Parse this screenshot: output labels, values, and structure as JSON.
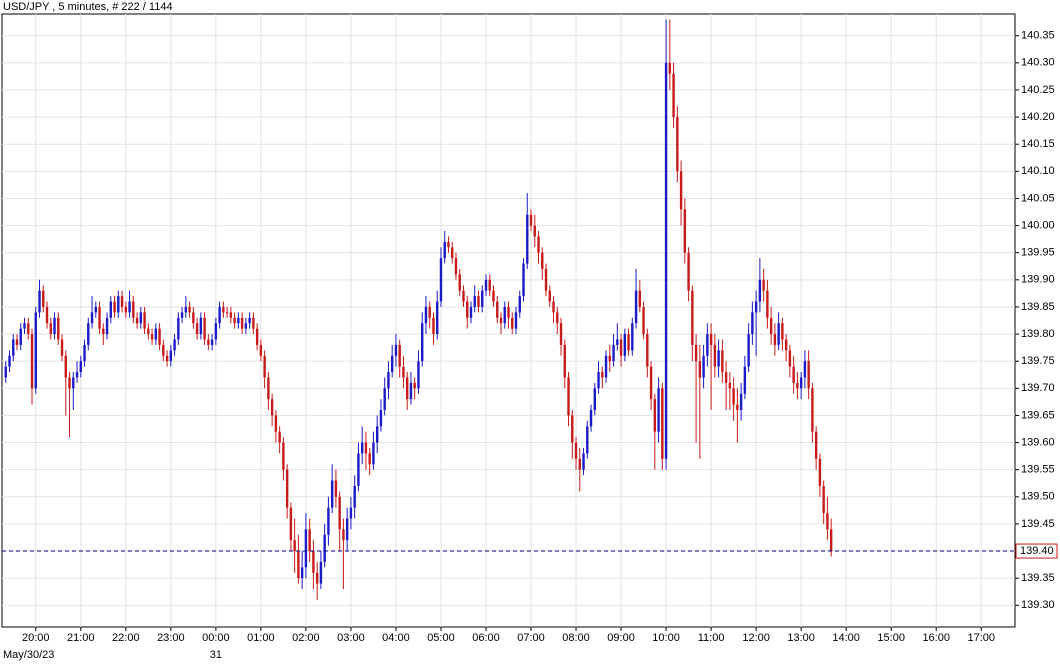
{
  "chart_data": {
    "type": "candlestick",
    "title": "USD/JPY , 5 minutes, # 222 / 1144",
    "date_labels": [
      "May/30/23",
      "31"
    ],
    "up_color": "#1a1ac8",
    "down_color": "#c81a1a",
    "grid": true,
    "xlim": [
      "19:15",
      "17:45"
    ],
    "xticks": [
      "20:00",
      "21:00",
      "22:00",
      "23:00",
      "00:00",
      "01:00",
      "02:00",
      "03:00",
      "04:00",
      "05:00",
      "06:00",
      "07:00",
      "08:00",
      "09:00",
      "10:00",
      "11:00",
      "12:00",
      "13:00",
      "14:00",
      "15:00",
      "16:00",
      "17:00"
    ],
    "ylim": [
      139.26,
      140.39
    ],
    "yticks": [
      {
        "value": 139.3,
        "label": "139.30"
      },
      {
        "value": 139.35,
        "label": "139.35"
      },
      {
        "value": 139.4,
        "label": "139.40"
      },
      {
        "value": 139.45,
        "label": "139.45"
      },
      {
        "value": 139.5,
        "label": "139.50"
      },
      {
        "value": 139.55,
        "label": "139.55"
      },
      {
        "value": 139.6,
        "label": "139.60"
      },
      {
        "value": 139.65,
        "label": "139.65"
      },
      {
        "value": 139.7,
        "label": "139.70"
      },
      {
        "value": 139.75,
        "label": "139.75"
      },
      {
        "value": 139.8,
        "label": "139.80"
      },
      {
        "value": 139.85,
        "label": "139.85"
      },
      {
        "value": 139.9,
        "label": "139.90"
      },
      {
        "value": 139.95,
        "label": "139.95"
      },
      {
        "value": 140.0,
        "label": "140.00"
      },
      {
        "value": 140.05,
        "label": "140.05"
      },
      {
        "value": 140.1,
        "label": "140.10"
      },
      {
        "value": 140.15,
        "label": "140.15"
      },
      {
        "value": 140.2,
        "label": "140.20"
      },
      {
        "value": 140.25,
        "label": "140.25"
      },
      {
        "value": 140.3,
        "label": "140.30"
      },
      {
        "value": 140.35,
        "label": "140.35"
      }
    ],
    "last": {
      "value": 139.4,
      "label": "139.40",
      "color": "#000080"
    },
    "x": [
      "19:20",
      "19:25",
      "19:30",
      "19:35",
      "19:40",
      "19:45",
      "19:50",
      "19:55",
      "20:00",
      "20:05",
      "20:10",
      "20:15",
      "20:20",
      "20:25",
      "20:30",
      "20:35",
      "20:40",
      "20:45",
      "20:50",
      "20:55",
      "21:00",
      "21:05",
      "21:10",
      "21:15",
      "21:20",
      "21:25",
      "21:30",
      "21:35",
      "21:40",
      "21:45",
      "21:50",
      "21:55",
      "22:00",
      "22:05",
      "22:10",
      "22:15",
      "22:20",
      "22:25",
      "22:30",
      "22:35",
      "22:40",
      "22:45",
      "22:50",
      "22:55",
      "23:00",
      "23:05",
      "23:10",
      "23:15",
      "23:20",
      "23:25",
      "23:30",
      "23:35",
      "23:40",
      "23:45",
      "23:50",
      "23:55",
      "00:00",
      "00:05",
      "00:10",
      "00:15",
      "00:20",
      "00:25",
      "00:30",
      "00:35",
      "00:40",
      "00:45",
      "00:50",
      "00:55",
      "01:00",
      "01:05",
      "01:10",
      "01:15",
      "01:20",
      "01:25",
      "01:30",
      "01:35",
      "01:40",
      "01:45",
      "01:50",
      "01:55",
      "02:00",
      "02:05",
      "02:10",
      "02:15",
      "02:20",
      "02:25",
      "02:30",
      "02:35",
      "02:40",
      "02:45",
      "02:50",
      "02:55",
      "03:00",
      "03:05",
      "03:10",
      "03:15",
      "03:20",
      "03:25",
      "03:30",
      "03:35",
      "03:40",
      "03:45",
      "03:50",
      "03:55",
      "04:00",
      "04:05",
      "04:10",
      "04:15",
      "04:20",
      "04:25",
      "04:30",
      "04:35",
      "04:40",
      "04:45",
      "04:50",
      "04:55",
      "05:00",
      "05:05",
      "05:10",
      "05:15",
      "05:20",
      "05:25",
      "05:30",
      "05:35",
      "05:40",
      "05:45",
      "05:50",
      "05:55",
      "06:00",
      "06:05",
      "06:10",
      "06:15",
      "06:20",
      "06:25",
      "06:30",
      "06:35",
      "06:40",
      "06:45",
      "06:50",
      "06:55",
      "07:00",
      "07:05",
      "07:10",
      "07:15",
      "07:20",
      "07:25",
      "07:30",
      "07:35",
      "07:40",
      "07:45",
      "07:50",
      "07:55",
      "08:00",
      "08:05",
      "08:10",
      "08:15",
      "08:20",
      "08:25",
      "08:30",
      "08:35",
      "08:40",
      "08:45",
      "08:50",
      "08:55",
      "09:00",
      "09:05",
      "09:10",
      "09:15",
      "09:20",
      "09:25",
      "09:30",
      "09:35",
      "09:40",
      "09:45",
      "09:50",
      "09:55",
      "10:00",
      "10:05",
      "10:10",
      "10:15",
      "10:20",
      "10:25",
      "10:30",
      "10:35",
      "10:40",
      "10:45",
      "10:50",
      "10:55",
      "11:00",
      "11:05",
      "11:10",
      "11:15",
      "11:20",
      "11:25",
      "11:30",
      "11:35",
      "11:40",
      "11:45",
      "11:50",
      "11:55",
      "12:00",
      "12:05",
      "12:10",
      "12:15",
      "12:20",
      "12:25",
      "12:30",
      "12:35",
      "12:40",
      "12:45",
      "12:50",
      "12:55",
      "13:00",
      "13:05",
      "13:10",
      "13:15",
      "13:20",
      "13:25",
      "13:30",
      "13:35",
      "13:40"
    ],
    "open": [
      139.72,
      139.74,
      139.76,
      139.79,
      139.78,
      139.81,
      139.82,
      139.8,
      139.7,
      139.84,
      139.88,
      139.85,
      139.82,
      139.8,
      139.83,
      139.79,
      139.76,
      139.72,
      139.7,
      139.72,
      139.73,
      139.75,
      139.78,
      139.82,
      139.84,
      139.85,
      139.81,
      139.8,
      139.83,
      139.86,
      139.84,
      139.87,
      139.85,
      139.84,
      139.86,
      139.83,
      139.82,
      139.84,
      139.81,
      139.8,
      139.79,
      139.81,
      139.78,
      139.76,
      139.75,
      139.77,
      139.79,
      139.83,
      139.84,
      139.85,
      139.84,
      139.82,
      139.8,
      139.83,
      139.79,
      139.78,
      139.79,
      139.82,
      139.85,
      139.84,
      139.84,
      139.83,
      139.82,
      139.83,
      139.81,
      139.82,
      139.83,
      139.81,
      139.78,
      139.76,
      139.72,
      139.68,
      139.65,
      139.62,
      139.6,
      139.55,
      139.48,
      139.42,
      139.4,
      139.35,
      139.37,
      139.44,
      139.4,
      139.36,
      139.34,
      139.38,
      139.43,
      139.48,
      139.53,
      139.5,
      139.44,
      139.42,
      139.46,
      139.48,
      139.52,
      139.58,
      139.6,
      139.58,
      139.56,
      139.6,
      139.63,
      139.66,
      139.7,
      139.73,
      139.76,
      139.78,
      139.74,
      139.72,
      139.68,
      139.71,
      139.7,
      139.75,
      139.82,
      139.85,
      139.83,
      139.8,
      139.86,
      139.94,
      139.97,
      139.96,
      139.94,
      139.91,
      139.88,
      139.86,
      139.83,
      139.85,
      139.87,
      139.85,
      139.88,
      139.9,
      139.88,
      139.86,
      139.83,
      139.82,
      139.85,
      139.83,
      139.81,
      139.84,
      139.87,
      139.93,
      140.02,
      140.0,
      139.98,
      139.95,
      139.92,
      139.88,
      139.86,
      139.84,
      139.82,
      139.78,
      139.72,
      139.65,
      139.6,
      139.57,
      139.55,
      139.58,
      139.63,
      139.66,
      139.7,
      139.73,
      139.72,
      139.76,
      139.75,
      139.78,
      139.79,
      139.76,
      139.8,
      139.77,
      139.82,
      139.88,
      139.85,
      139.8,
      139.74,
      139.68,
      139.62,
      139.7,
      139.57,
      140.3,
      140.28,
      140.2,
      140.1,
      140.03,
      139.95,
      139.88,
      139.78,
      139.75,
      139.72,
      139.76,
      139.8,
      139.78,
      139.74,
      139.77,
      139.73,
      139.71,
      139.7,
      139.67,
      139.66,
      139.69,
      139.74,
      139.8,
      139.84,
      139.86,
      139.9,
      139.88,
      139.83,
      139.8,
      139.78,
      139.82,
      139.79,
      139.77,
      139.74,
      139.71,
      139.7,
      139.72,
      139.75,
      139.7,
      139.62,
      139.57,
      139.52,
      139.47,
      139.44
    ],
    "high": [
      139.75,
      139.77,
      139.8,
      139.8,
      139.82,
      139.83,
      139.83,
      139.81,
      139.85,
      139.9,
      139.89,
      139.86,
      139.83,
      139.84,
      139.84,
      139.8,
      139.77,
      139.73,
      139.73,
      139.75,
      139.76,
      139.79,
      139.83,
      139.87,
      139.86,
      139.86,
      139.82,
      139.84,
      139.87,
      139.87,
      139.88,
      139.88,
      139.86,
      139.88,
      139.87,
      139.84,
      139.85,
      139.85,
      139.82,
      139.81,
      139.82,
      139.82,
      139.79,
      139.77,
      139.78,
      139.8,
      139.84,
      139.85,
      139.87,
      139.86,
      139.85,
      139.83,
      139.84,
      139.84,
      139.8,
      139.8,
      139.83,
      139.86,
      139.86,
      139.85,
      139.85,
      139.84,
      139.84,
      139.84,
      139.83,
      139.84,
      139.84,
      139.82,
      139.79,
      139.77,
      139.73,
      139.69,
      139.66,
      139.63,
      139.61,
      139.56,
      139.49,
      139.46,
      139.43,
      139.4,
      139.47,
      139.46,
      139.42,
      139.38,
      139.4,
      139.45,
      139.5,
      139.56,
      139.55,
      139.51,
      139.46,
      139.48,
      139.5,
      139.54,
      139.6,
      139.63,
      139.62,
      139.59,
      139.62,
      139.65,
      139.68,
      139.72,
      139.75,
      139.78,
      139.8,
      139.79,
      139.76,
      139.73,
      139.73,
      139.72,
      139.77,
      139.84,
      139.87,
      139.86,
      139.84,
      139.88,
      139.96,
      139.99,
      139.98,
      139.97,
      139.95,
      139.92,
      139.89,
      139.87,
      139.86,
      139.89,
      139.88,
      139.89,
      139.91,
      139.91,
      139.89,
      139.87,
      139.84,
      139.86,
      139.86,
      139.84,
      139.85,
      139.88,
      139.94,
      140.06,
      140.03,
      140.02,
      139.99,
      139.96,
      139.93,
      139.89,
      139.87,
      139.85,
      139.83,
      139.79,
      139.73,
      139.66,
      139.61,
      139.59,
      139.59,
      139.64,
      139.67,
      139.71,
      139.75,
      139.74,
      139.77,
      139.78,
      139.8,
      139.82,
      139.8,
      139.81,
      139.81,
      139.83,
      139.92,
      139.9,
      139.86,
      139.81,
      139.75,
      139.69,
      139.72,
      139.71,
      140.38,
      140.38,
      140.3,
      140.22,
      140.12,
      140.05,
      139.96,
      139.89,
      139.8,
      139.78,
      139.78,
      139.82,
      139.82,
      139.8,
      139.79,
      139.79,
      139.75,
      139.73,
      139.72,
      139.7,
      139.71,
      139.76,
      139.82,
      139.86,
      139.88,
      139.94,
      139.92,
      139.9,
      139.85,
      139.82,
      139.84,
      139.83,
      139.8,
      139.78,
      139.76,
      139.73,
      139.73,
      139.77,
      139.77,
      139.71,
      139.63,
      139.58,
      139.53,
      139.5,
      139.46
    ],
    "low": [
      139.71,
      139.73,
      139.75,
      139.77,
      139.77,
      139.8,
      139.79,
      139.67,
      139.69,
      139.83,
      139.84,
      139.81,
      139.79,
      139.79,
      139.78,
      139.75,
      139.65,
      139.61,
      139.66,
      139.71,
      139.72,
      139.74,
      139.77,
      139.81,
      139.83,
      139.8,
      139.78,
      139.79,
      139.82,
      139.83,
      139.83,
      139.84,
      139.83,
      139.83,
      139.82,
      139.81,
      139.81,
      139.8,
      139.79,
      139.78,
      139.78,
      139.77,
      139.75,
      139.74,
      139.74,
      139.76,
      139.78,
      139.82,
      139.83,
      139.83,
      139.81,
      139.79,
      139.79,
      139.78,
      139.77,
      139.77,
      139.78,
      139.81,
      139.83,
      139.83,
      139.82,
      139.81,
      139.81,
      139.8,
      139.8,
      139.81,
      139.8,
      139.77,
      139.75,
      139.7,
      139.66,
      139.63,
      139.6,
      139.58,
      139.53,
      139.46,
      139.4,
      139.36,
      139.34,
      139.33,
      139.35,
      139.38,
      139.33,
      139.31,
      139.33,
      139.37,
      139.41,
      139.47,
      139.48,
      139.4,
      139.33,
      139.4,
      139.44,
      139.46,
      139.51,
      139.56,
      139.55,
      139.54,
      139.55,
      139.58,
      139.62,
      139.65,
      139.68,
      139.72,
      139.74,
      139.72,
      139.7,
      139.66,
      139.67,
      139.68,
      139.69,
      139.74,
      139.8,
      139.81,
      139.78,
      139.79,
      139.85,
      139.93,
      139.95,
      139.93,
      139.9,
      139.87,
      139.85,
      139.81,
      139.82,
      139.84,
      139.84,
      139.84,
      139.87,
      139.87,
      139.85,
      139.82,
      139.8,
      139.81,
      139.81,
      139.8,
      139.8,
      139.83,
      139.86,
      139.92,
      139.99,
      139.96,
      139.93,
      139.9,
      139.87,
      139.85,
      139.82,
      139.8,
      139.76,
      139.7,
      139.63,
      139.57,
      139.55,
      139.51,
      139.54,
      139.57,
      139.62,
      139.65,
      139.69,
      139.7,
      139.71,
      139.73,
      139.74,
      139.77,
      139.74,
      139.75,
      139.76,
      139.76,
      139.81,
      139.84,
      139.79,
      139.72,
      139.66,
      139.55,
      139.6,
      139.55,
      139.55,
      140.25,
      140.18,
      140.08,
      140.0,
      139.93,
      139.86,
      139.75,
      139.6,
      139.57,
      139.7,
      139.74,
      139.66,
      139.72,
      139.72,
      139.71,
      139.66,
      139.66,
      139.64,
      139.6,
      139.64,
      139.68,
      139.73,
      139.78,
      139.76,
      139.84,
      139.86,
      139.81,
      139.78,
      139.76,
      139.77,
      139.77,
      139.75,
      139.72,
      139.69,
      139.68,
      139.68,
      139.7,
      139.68,
      139.6,
      139.55,
      139.5,
      139.45,
      139.42,
      139.39
    ],
    "close": [
      139.74,
      139.76,
      139.79,
      139.78,
      139.81,
      139.82,
      139.8,
      139.7,
      139.84,
      139.88,
      139.85,
      139.82,
      139.8,
      139.83,
      139.79,
      139.76,
      139.72,
      139.7,
      139.72,
      139.73,
      139.75,
      139.78,
      139.82,
      139.84,
      139.85,
      139.81,
      139.8,
      139.83,
      139.86,
      139.84,
      139.87,
      139.85,
      139.84,
      139.86,
      139.83,
      139.82,
      139.84,
      139.81,
      139.8,
      139.79,
      139.81,
      139.78,
      139.76,
      139.75,
      139.77,
      139.79,
      139.83,
      139.84,
      139.85,
      139.84,
      139.82,
      139.8,
      139.83,
      139.79,
      139.78,
      139.79,
      139.82,
      139.85,
      139.84,
      139.84,
      139.83,
      139.82,
      139.83,
      139.81,
      139.82,
      139.83,
      139.81,
      139.78,
      139.76,
      139.72,
      139.68,
      139.65,
      139.62,
      139.6,
      139.55,
      139.48,
      139.42,
      139.4,
      139.35,
      139.37,
      139.44,
      139.4,
      139.36,
      139.34,
      139.38,
      139.43,
      139.48,
      139.53,
      139.5,
      139.44,
      139.42,
      139.46,
      139.48,
      139.52,
      139.58,
      139.6,
      139.58,
      139.56,
      139.6,
      139.63,
      139.66,
      139.7,
      139.73,
      139.76,
      139.78,
      139.74,
      139.72,
      139.68,
      139.71,
      139.7,
      139.75,
      139.82,
      139.85,
      139.83,
      139.8,
      139.86,
      139.94,
      139.97,
      139.96,
      139.94,
      139.91,
      139.88,
      139.86,
      139.83,
      139.85,
      139.87,
      139.85,
      139.88,
      139.9,
      139.88,
      139.86,
      139.83,
      139.82,
      139.85,
      139.83,
      139.81,
      139.84,
      139.87,
      139.93,
      140.02,
      140.0,
      139.98,
      139.95,
      139.92,
      139.88,
      139.86,
      139.84,
      139.82,
      139.78,
      139.72,
      139.65,
      139.6,
      139.57,
      139.55,
      139.58,
      139.63,
      139.66,
      139.7,
      139.73,
      139.72,
      139.76,
      139.75,
      139.78,
      139.79,
      139.76,
      139.8,
      139.77,
      139.82,
      139.88,
      139.85,
      139.8,
      139.74,
      139.68,
      139.62,
      139.7,
      139.57,
      140.3,
      140.28,
      140.2,
      140.1,
      140.03,
      139.95,
      139.88,
      139.78,
      139.75,
      139.72,
      139.76,
      139.8,
      139.78,
      139.74,
      139.77,
      139.73,
      139.71,
      139.7,
      139.67,
      139.66,
      139.69,
      139.74,
      139.8,
      139.84,
      139.86,
      139.9,
      139.88,
      139.83,
      139.8,
      139.78,
      139.82,
      139.79,
      139.77,
      139.74,
      139.71,
      139.7,
      139.72,
      139.75,
      139.7,
      139.62,
      139.57,
      139.52,
      139.47,
      139.44,
      139.4
    ]
  }
}
